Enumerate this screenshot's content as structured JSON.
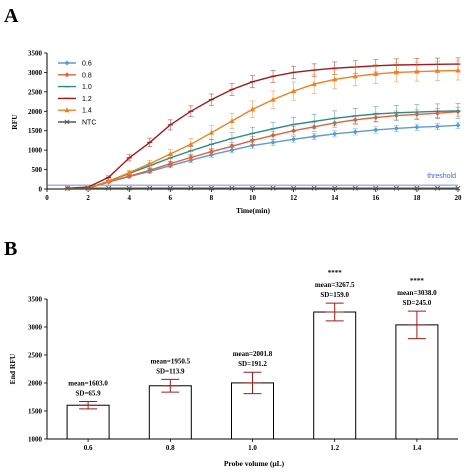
{
  "panels": {
    "a": "A",
    "b": "B"
  },
  "chart_data": [
    {
      "type": "line",
      "xlabel": "Time(min)",
      "ylabel": "RFU",
      "xlim": [
        0,
        20
      ],
      "ylim": [
        0,
        3500
      ],
      "xticks": [
        0,
        2,
        4,
        6,
        8,
        10,
        12,
        14,
        16,
        18,
        20
      ],
      "yticks": [
        0,
        500,
        1000,
        1500,
        2000,
        2500,
        3000,
        3500
      ],
      "threshold": {
        "label": "threshold",
        "value": 100,
        "color": "#4466ee"
      },
      "x": [
        1,
        2,
        3,
        4,
        5,
        6,
        7,
        8,
        9,
        10,
        11,
        12,
        13,
        14,
        15,
        16,
        17,
        18,
        19,
        20
      ],
      "legend_position": "top-left",
      "series": [
        {
          "name": "0.6",
          "color": "#5b9bd5",
          "marker": "diamond",
          "values": [
            20,
            20,
            180,
            320,
            450,
            600,
            740,
            880,
            1000,
            1120,
            1200,
            1280,
            1350,
            1420,
            1470,
            1520,
            1560,
            1590,
            1610,
            1640
          ],
          "err": [
            0,
            0,
            20,
            35,
            45,
            55,
            60,
            65,
            70,
            70,
            75,
            75,
            80,
            80,
            80,
            80,
            80,
            80,
            80,
            80
          ]
        },
        {
          "name": "0.8",
          "color": "#e0623c",
          "marker": "diamond",
          "values": [
            20,
            20,
            180,
            330,
            480,
            650,
            810,
            960,
            1100,
            1250,
            1380,
            1500,
            1600,
            1700,
            1780,
            1840,
            1890,
            1920,
            1950,
            1990
          ],
          "err": [
            0,
            0,
            20,
            40,
            55,
            65,
            75,
            85,
            95,
            100,
            105,
            110,
            115,
            115,
            115,
            115,
            115,
            115,
            115,
            115
          ]
        },
        {
          "name": "1.0",
          "color": "#2a8a8a",
          "marker": "line",
          "values": [
            20,
            20,
            200,
            400,
            600,
            800,
            980,
            1150,
            1300,
            1430,
            1550,
            1660,
            1740,
            1820,
            1880,
            1930,
            1960,
            1980,
            2000,
            2010
          ],
          "err": [
            0,
            0,
            25,
            50,
            70,
            90,
            110,
            130,
            150,
            160,
            170,
            180,
            185,
            190,
            190,
            190,
            190,
            190,
            190,
            190
          ]
        },
        {
          "name": "1.2",
          "color": "#a01c1c",
          "marker": "line",
          "values": [
            20,
            50,
            300,
            800,
            1200,
            1650,
            2000,
            2300,
            2560,
            2760,
            2900,
            3000,
            3060,
            3110,
            3140,
            3170,
            3190,
            3200,
            3210,
            3215
          ],
          "err": [
            0,
            10,
            40,
            80,
            110,
            130,
            140,
            145,
            150,
            155,
            155,
            160,
            160,
            160,
            160,
            160,
            160,
            160,
            160,
            160
          ]
        },
        {
          "name": "1.4",
          "color": "#f08020",
          "marker": "triangle",
          "values": [
            20,
            20,
            200,
            420,
            650,
            900,
            1150,
            1450,
            1750,
            2050,
            2300,
            2520,
            2700,
            2820,
            2900,
            2960,
            3000,
            3020,
            3040,
            3050
          ],
          "err": [
            0,
            0,
            25,
            60,
            90,
            120,
            150,
            180,
            200,
            215,
            225,
            235,
            240,
            245,
            245,
            245,
            245,
            245,
            245,
            245
          ]
        },
        {
          "name": "NTC",
          "color": "#555555",
          "marker": "cross",
          "values": [
            20,
            20,
            20,
            20,
            20,
            20,
            20,
            20,
            20,
            20,
            20,
            20,
            20,
            20,
            20,
            20,
            20,
            20,
            20,
            20
          ],
          "err": [
            0,
            0,
            0,
            0,
            0,
            0,
            0,
            0,
            0,
            0,
            0,
            0,
            0,
            0,
            0,
            0,
            0,
            0,
            0,
            0
          ]
        }
      ]
    },
    {
      "type": "bar",
      "xlabel": "Probe volume (μL)",
      "ylabel": "End RFU",
      "ylim": [
        1000,
        3500
      ],
      "yticks": [
        1000,
        1500,
        2000,
        2500,
        3000,
        3500
      ],
      "categories": [
        "0.6",
        "0.8",
        "1.0",
        "1.2",
        "1.4"
      ],
      "values": [
        1603.0,
        1950.5,
        2001.8,
        3267.5,
        3038.0
      ],
      "sd": [
        65.9,
        113.9,
        191.2,
        159.0,
        245.0
      ],
      "labels": [
        {
          "mean": "mean=1603.0",
          "sd": "SD=65.9",
          "sig": ""
        },
        {
          "mean": "mean=1950.5",
          "sd": "SD=113.9",
          "sig": ""
        },
        {
          "mean": "mean=2001.8",
          "sd": "SD=191.2",
          "sig": ""
        },
        {
          "mean": "mean=3267.5",
          "sd": "SD=159.0",
          "sig": "****"
        },
        {
          "mean": "mean=3038.0",
          "sd": "SD=245.0",
          "sig": "****"
        }
      ],
      "errorbar_color": "#a01c1c",
      "legend_position": "none"
    }
  ]
}
